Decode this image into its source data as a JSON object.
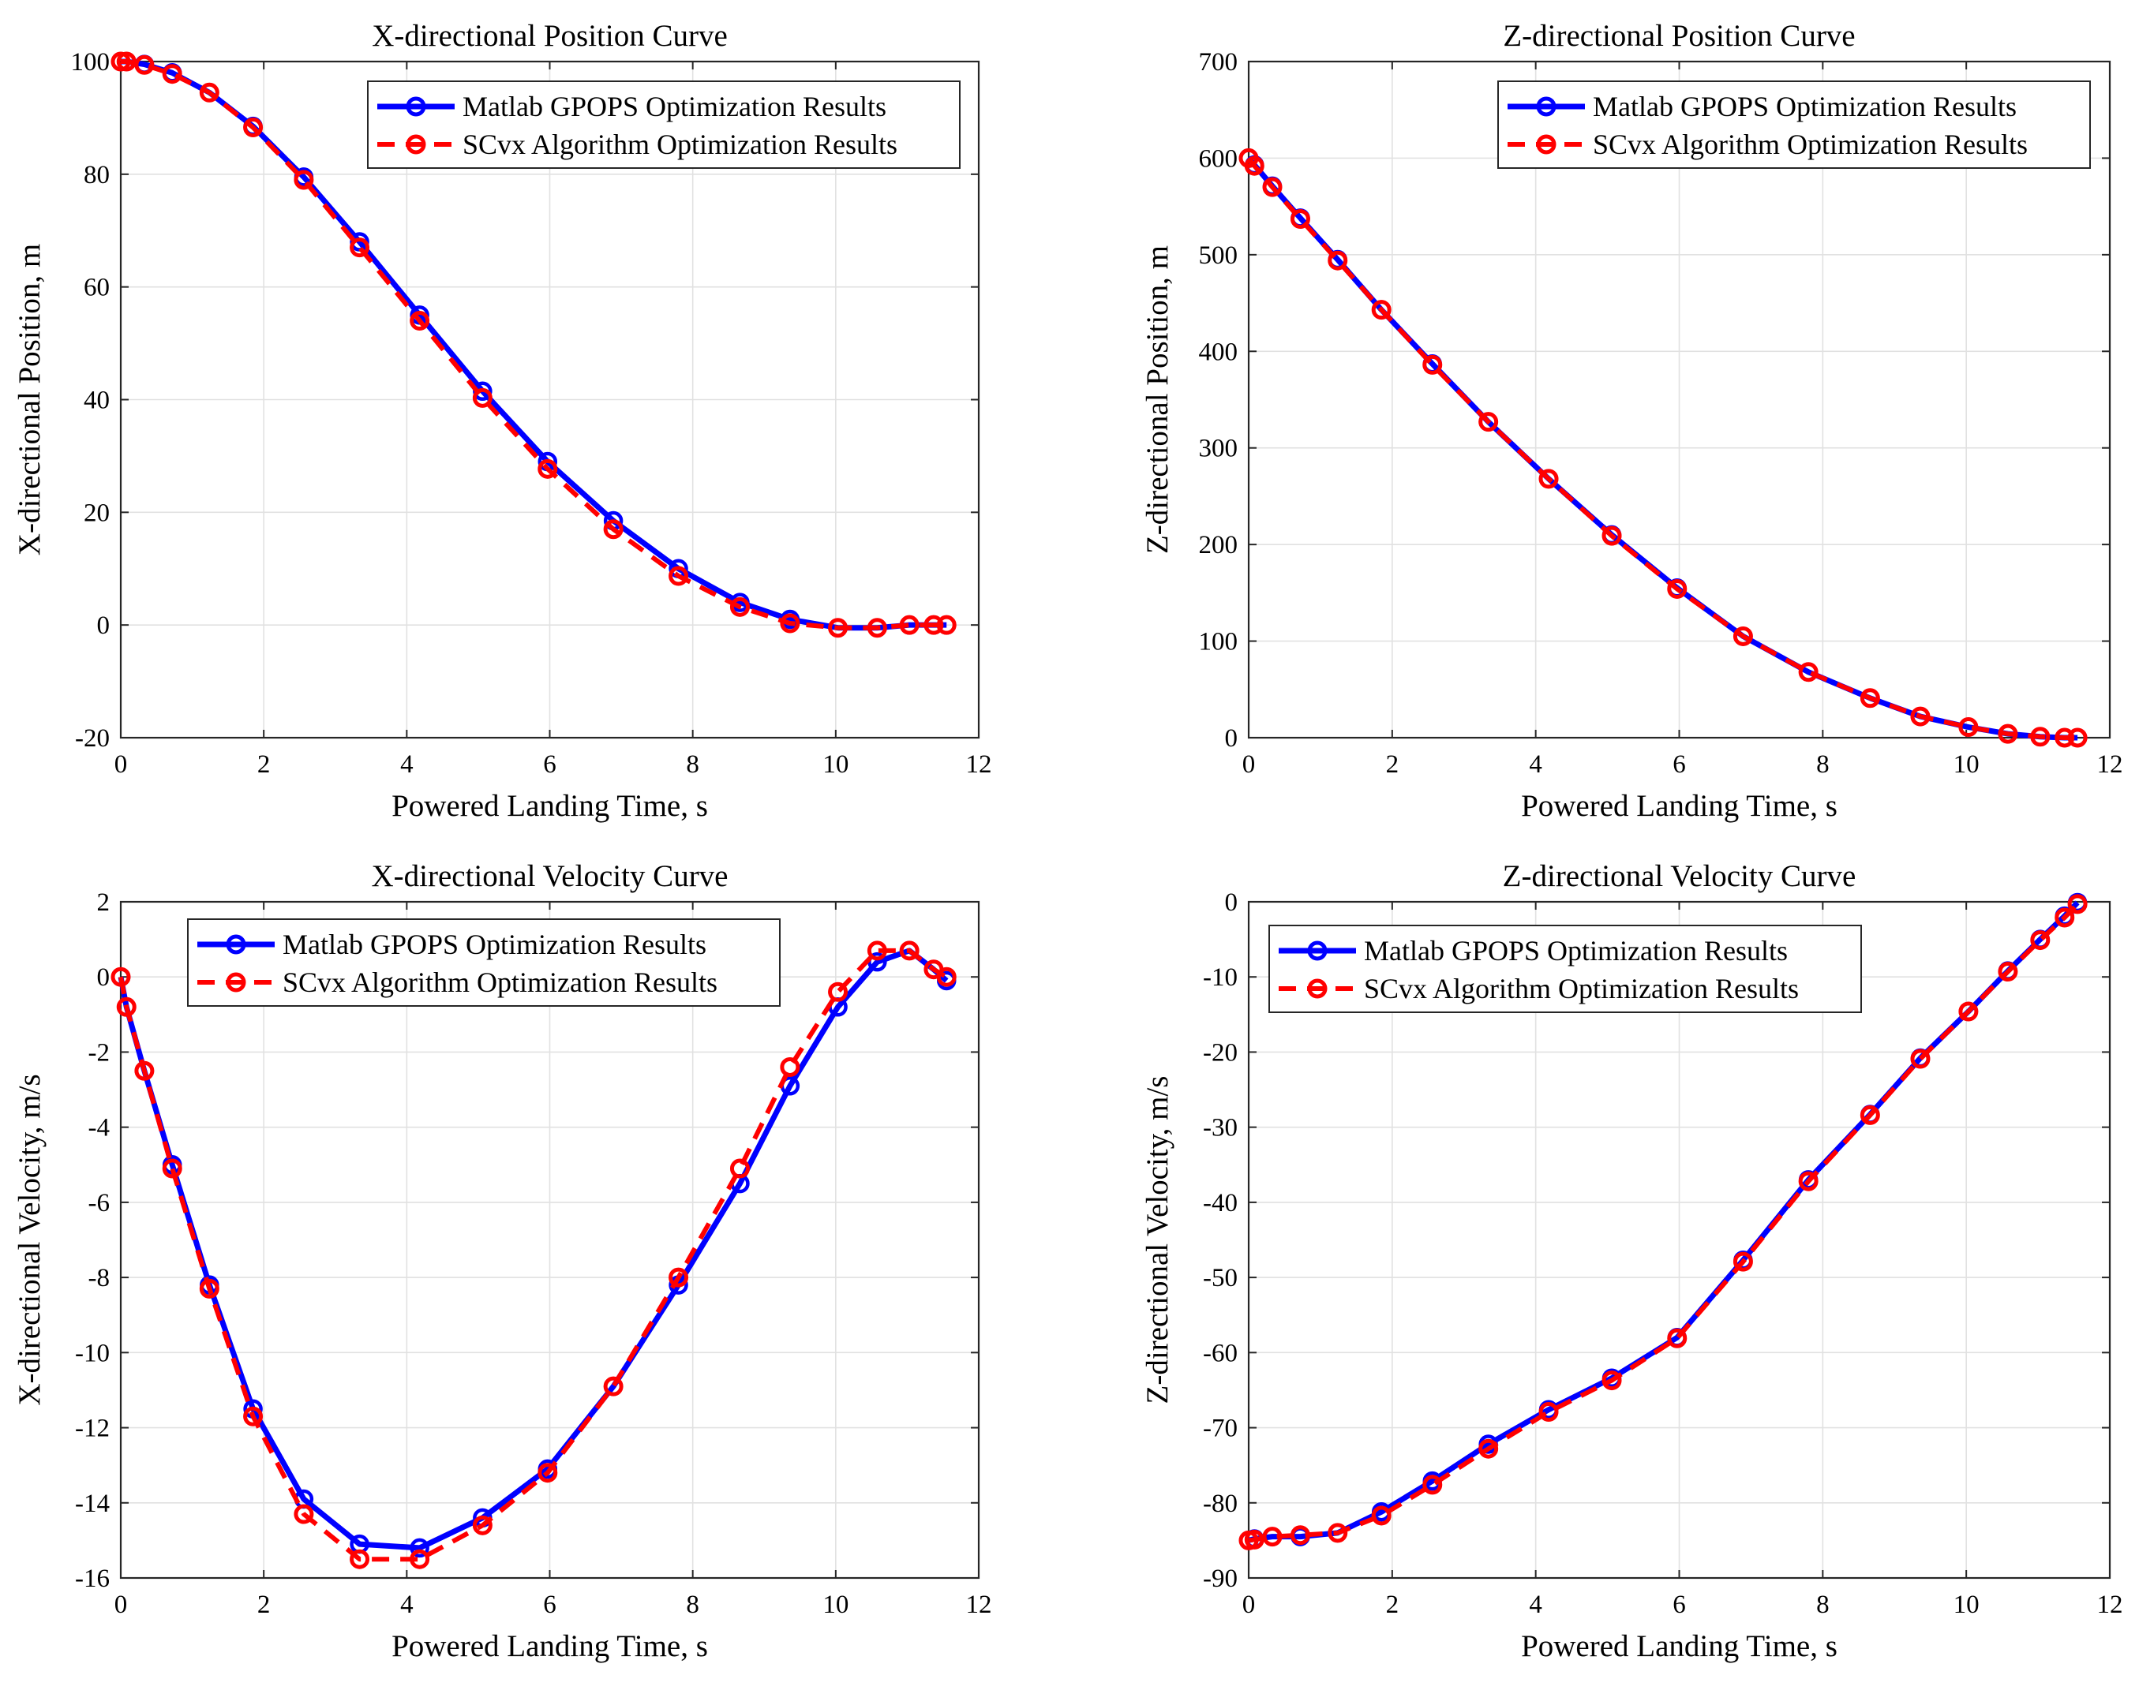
{
  "colors": {
    "gpops": "#0000ff",
    "scvx": "#ff0000",
    "grid": "#e1e1e1",
    "axis": "#262626"
  },
  "chart_data": [
    {
      "id": "x-position",
      "type": "line",
      "title": "X-directional Position Curve",
      "xlabel": "Powered Landing Time, s",
      "ylabel": "X-directional Position, m",
      "xlim": [
        0,
        12
      ],
      "ylim": [
        -20,
        100
      ],
      "xticks": [
        "0",
        "2",
        "4",
        "6",
        "8",
        "10",
        "12"
      ],
      "yticks": [
        "-20",
        "0",
        "20",
        "40",
        "60",
        "80",
        "100"
      ],
      "grid": true,
      "legend_position": "top-right",
      "series": [
        {
          "name": "Matlab GPOPS Optimization Results",
          "style": "solid",
          "x": [
            0,
            0.08,
            0.33,
            0.72,
            1.24,
            1.85,
            2.56,
            3.34,
            4.18,
            5.06,
            5.97,
            6.89,
            7.8,
            8.66,
            9.36,
            10.03,
            10.58,
            11.03,
            11.37,
            11.55
          ],
          "y": [
            100,
            100,
            99.5,
            98,
            94.5,
            88.5,
            79.5,
            68,
            55,
            41.5,
            29,
            18.5,
            10,
            4,
            1,
            -0.5,
            -0.5,
            0,
            0,
            0
          ]
        },
        {
          "name": "SCvx Algorithm Optimization Results",
          "style": "dashed",
          "x": [
            0,
            0.08,
            0.33,
            0.72,
            1.24,
            1.85,
            2.56,
            3.34,
            4.18,
            5.06,
            5.97,
            6.89,
            7.8,
            8.66,
            9.36,
            10.03,
            10.58,
            11.03,
            11.37,
            11.55
          ],
          "y": [
            100,
            100,
            99.4,
            97.8,
            94.5,
            88.3,
            79,
            67,
            54,
            40.3,
            27.7,
            17,
            8.7,
            3.2,
            0.3,
            -0.5,
            -0.5,
            0,
            0,
            0
          ]
        }
      ]
    },
    {
      "id": "z-position",
      "type": "line",
      "title": "Z-directional Position Curve",
      "xlabel": "Powered Landing Time, s",
      "ylabel": "Z-directional Position, m",
      "xlim": [
        0,
        12
      ],
      "ylim": [
        0,
        700
      ],
      "xticks": [
        "0",
        "2",
        "4",
        "6",
        "8",
        "10",
        "12"
      ],
      "yticks": [
        "0",
        "100",
        "200",
        "300",
        "400",
        "500",
        "600",
        "700"
      ],
      "grid": true,
      "legend_position": "top-right",
      "series": [
        {
          "name": "Matlab GPOPS Optimization Results",
          "style": "solid",
          "x": [
            0,
            0.08,
            0.33,
            0.72,
            1.24,
            1.85,
            2.56,
            3.34,
            4.18,
            5.06,
            5.97,
            6.89,
            7.8,
            8.66,
            9.36,
            10.03,
            10.58,
            11.03,
            11.37,
            11.55
          ],
          "y": [
            600,
            593,
            571,
            538,
            495,
            443,
            387,
            327,
            268,
            210,
            155,
            105,
            68,
            41,
            22,
            11,
            4,
            1,
            0,
            0
          ]
        },
        {
          "name": "SCvx Algorithm Optimization Results",
          "style": "dashed",
          "x": [
            0,
            0.08,
            0.33,
            0.72,
            1.24,
            1.85,
            2.56,
            3.34,
            4.18,
            5.06,
            5.97,
            6.89,
            7.8,
            8.66,
            9.36,
            10.03,
            10.58,
            11.03,
            11.37,
            11.55
          ],
          "y": [
            600,
            592,
            570,
            537,
            494,
            443,
            386,
            327,
            268,
            209,
            154,
            105,
            68,
            41,
            22,
            11,
            4,
            1,
            0,
            0
          ]
        }
      ]
    },
    {
      "id": "x-velocity",
      "type": "line",
      "title": "X-directional Velocity Curve",
      "xlabel": "Powered Landing Time, s",
      "ylabel": "X-directional Velocity, m/s",
      "xlim": [
        0,
        12
      ],
      "ylim": [
        -16,
        2
      ],
      "xticks": [
        "0",
        "2",
        "4",
        "6",
        "8",
        "10",
        "12"
      ],
      "yticks": [
        "-16",
        "-14",
        "-12",
        "-10",
        "-8",
        "-6",
        "-4",
        "-2",
        "0",
        "2"
      ],
      "grid": true,
      "legend_position": "top-center",
      "series": [
        {
          "name": "Matlab GPOPS Optimization Results",
          "style": "solid",
          "x": [
            0,
            0.08,
            0.33,
            0.72,
            1.24,
            1.85,
            2.56,
            3.34,
            4.18,
            5.06,
            5.97,
            6.89,
            7.8,
            8.66,
            9.36,
            10.03,
            10.58,
            11.03,
            11.37,
            11.55
          ],
          "y": [
            0,
            -0.8,
            -2.5,
            -5,
            -8.2,
            -11.5,
            -13.9,
            -15.1,
            -15.2,
            -14.4,
            -13.1,
            -10.9,
            -8.2,
            -5.5,
            -2.9,
            -0.8,
            0.4,
            0.7,
            0.2,
            -0.1
          ]
        },
        {
          "name": "SCvx Algorithm Optimization Results",
          "style": "dashed",
          "x": [
            0,
            0.08,
            0.33,
            0.72,
            1.24,
            1.85,
            2.56,
            3.34,
            4.18,
            5.06,
            5.97,
            6.89,
            7.8,
            8.66,
            9.36,
            10.03,
            10.58,
            11.03,
            11.37,
            11.55
          ],
          "y": [
            0,
            -0.8,
            -2.5,
            -5.1,
            -8.3,
            -11.7,
            -14.3,
            -15.5,
            -15.5,
            -14.6,
            -13.2,
            -10.9,
            -8,
            -5.1,
            -2.4,
            -0.4,
            0.7,
            0.7,
            0.2,
            0
          ]
        }
      ]
    },
    {
      "id": "z-velocity",
      "type": "line",
      "title": "Z-directional Velocity Curve",
      "xlabel": "Powered Landing Time, s",
      "ylabel": "Z-directional Velocity, m/s",
      "xlim": [
        0,
        12
      ],
      "ylim": [
        -90,
        0
      ],
      "xticks": [
        "0",
        "2",
        "4",
        "6",
        "8",
        "10",
        "12"
      ],
      "yticks": [
        "-90",
        "-80",
        "-70",
        "-60",
        "-50",
        "-40",
        "-30",
        "-20",
        "-10",
        "0"
      ],
      "grid": true,
      "legend_position": "top-left",
      "series": [
        {
          "name": "Matlab GPOPS Optimization Results",
          "style": "solid",
          "x": [
            0,
            0.08,
            0.33,
            0.72,
            1.24,
            1.85,
            2.56,
            3.34,
            4.18,
            5.06,
            5.97,
            6.89,
            7.8,
            8.66,
            9.36,
            10.03,
            10.58,
            11.03,
            11.37,
            11.55
          ],
          "y": [
            -85,
            -84.8,
            -84.5,
            -84.5,
            -84,
            -81.2,
            -77.1,
            -72.2,
            -67.6,
            -63.4,
            -58,
            -47.7,
            -37,
            -28.3,
            -20.8,
            -14.6,
            -9.2,
            -5,
            -1.9,
            -0.1
          ]
        },
        {
          "name": "SCvx Algorithm Optimization Results",
          "style": "dashed",
          "x": [
            0,
            0.08,
            0.33,
            0.72,
            1.24,
            1.85,
            2.56,
            3.34,
            4.18,
            5.06,
            5.97,
            6.89,
            7.8,
            8.66,
            9.36,
            10.03,
            10.58,
            11.03,
            11.37,
            11.55
          ],
          "y": [
            -85,
            -84.9,
            -84.5,
            -84.3,
            -84,
            -81.7,
            -77.6,
            -72.8,
            -67.9,
            -63.7,
            -58.1,
            -47.9,
            -37.2,
            -28.4,
            -20.9,
            -14.6,
            -9.3,
            -5.1,
            -2.1,
            -0.3
          ]
        }
      ]
    }
  ]
}
